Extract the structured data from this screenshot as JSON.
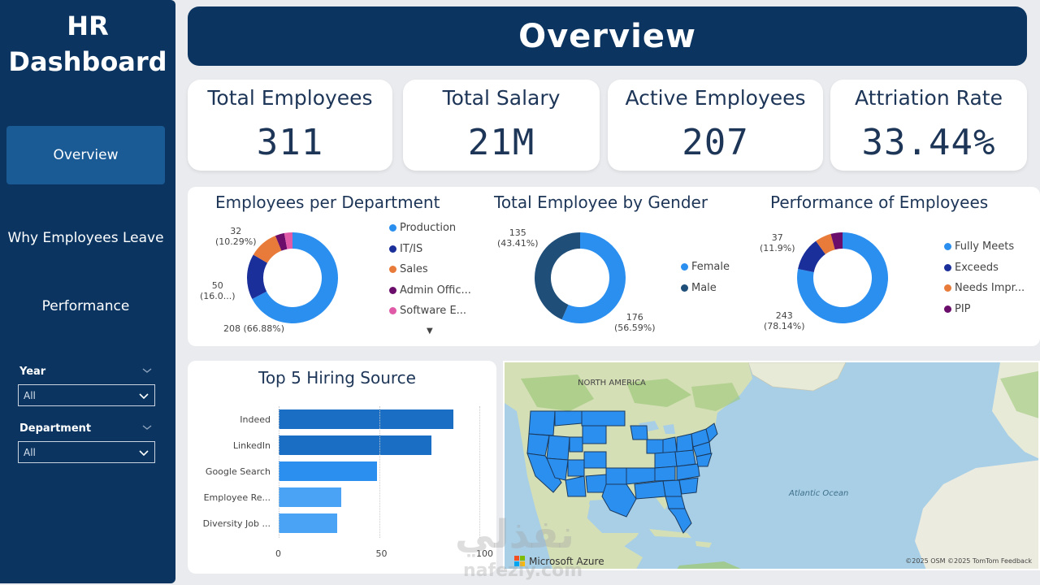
{
  "sidebar": {
    "title_line1": "HR",
    "title_line2": "Dashboard",
    "nav": [
      "Overview",
      "Why Employees Leave",
      "Performance"
    ],
    "filters": [
      {
        "label": "Year",
        "value": "All"
      },
      {
        "label": "Department",
        "value": "All"
      }
    ]
  },
  "header": {
    "title": "Overview"
  },
  "kpis": [
    {
      "label": "Total Employees",
      "value": "311"
    },
    {
      "label": "Total Salary",
      "value": "21M"
    },
    {
      "label": "Active Employees",
      "value": "207"
    },
    {
      "label": "Attriation Rate",
      "value": "33.44%"
    }
  ],
  "chart_data": [
    {
      "type": "pie",
      "title": "Employees per Department",
      "categories": [
        "Production",
        "IT/IS",
        "Sales",
        "Admin Offic...",
        "Software E..."
      ],
      "values": [
        208,
        50,
        32,
        10,
        9
      ],
      "colors": [
        "#2b8ff0",
        "#1a2f9a",
        "#e87b3a",
        "#6b0d6b",
        "#e05aa8"
      ],
      "data_labels": [
        {
          "line1": "208 (66.88%)",
          "line2": ""
        },
        {
          "line1": "50",
          "line2": "(16.0...)"
        },
        {
          "line1": "32",
          "line2": "(10.29%)"
        }
      ],
      "legend_more": "▼"
    },
    {
      "type": "pie",
      "title": "Total Employee by Gender",
      "categories": [
        "Female",
        "Male"
      ],
      "values": [
        176,
        135
      ],
      "colors": [
        "#2b8ff0",
        "#1f4e79"
      ],
      "data_labels": [
        {
          "line1": "176",
          "line2": "(56.59%)"
        },
        {
          "line1": "135",
          "line2": "(43.41%)"
        }
      ]
    },
    {
      "type": "pie",
      "title": "Performance of Employees",
      "categories": [
        "Fully Meets",
        "Exceeds",
        "Needs Impr...",
        "PIP"
      ],
      "values": [
        243,
        37,
        18,
        13
      ],
      "colors": [
        "#2b8ff0",
        "#1a2f9a",
        "#e87b3a",
        "#6b0d6b"
      ],
      "data_labels": [
        {
          "line1": "243",
          "line2": "(78.14%)"
        },
        {
          "line1": "37",
          "line2": "(11.9%)"
        }
      ]
    },
    {
      "type": "bar",
      "title": "Top 5 Hiring Source",
      "categories": [
        "Indeed",
        "LinkedIn",
        "Google Search",
        "Employee Re...",
        "Diversity Job ..."
      ],
      "values": [
        87,
        76,
        49,
        31,
        29
      ],
      "colors": [
        "#1a6fc4",
        "#1a6fc4",
        "#2b8ff0",
        "#4aa3f5",
        "#4aa3f5"
      ],
      "xlim": [
        0,
        100
      ],
      "xticks": [
        "0",
        "50",
        "100"
      ]
    }
  ],
  "map": {
    "labels": {
      "continent": "NORTH AMERICA",
      "ocean": "Atlantic Ocean"
    },
    "brand": "Microsoft Azure",
    "attribution": "©2025 OSM  ©2025 TomTom  Feedback"
  },
  "watermark": {
    "arabic": "نفذلي",
    "latin": "nafezly.com"
  }
}
